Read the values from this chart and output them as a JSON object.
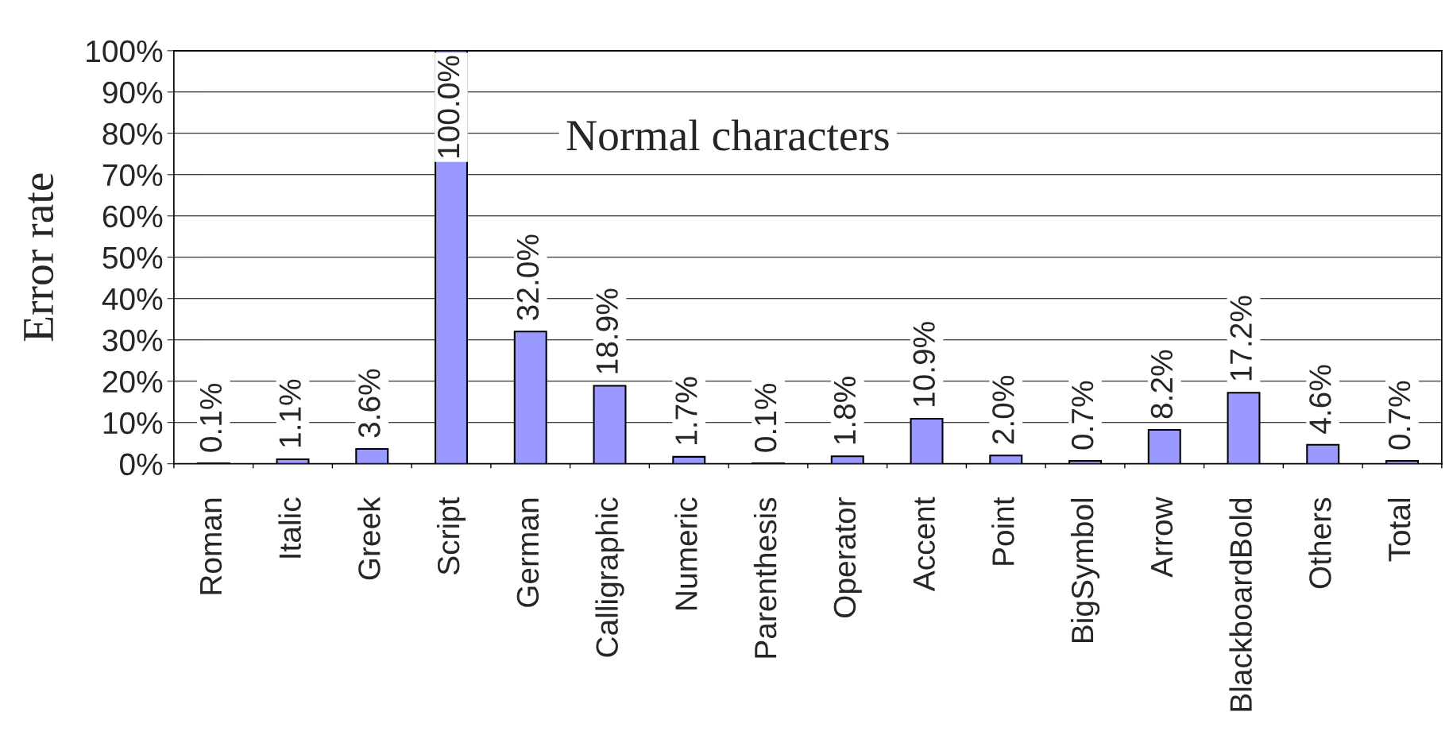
{
  "chart_data": {
    "type": "bar",
    "ylabel": "Error rate",
    "categories": [
      "Roman",
      "Italic",
      "Greek",
      "Script",
      "German",
      "Calligraphic",
      "Numeric",
      "Parenthesis",
      "Operator",
      "Accent",
      "Point",
      "BigSymbol",
      "Arrow",
      "BlackboardBold",
      "Others",
      "Total"
    ],
    "values": [
      0.1,
      1.1,
      3.6,
      100.0,
      32.0,
      18.9,
      1.7,
      0.1,
      1.8,
      10.9,
      2.0,
      0.7,
      8.2,
      17.2,
      4.6,
      0.7
    ],
    "value_labels": [
      "0.1%",
      "1.1%",
      "3.6%",
      "100.0%",
      "32.0%",
      "18.9%",
      "1.7%",
      "0.1%",
      "1.8%",
      "10.9%",
      "2.0%",
      "0.7%",
      "8.2%",
      "17.2%",
      "4.6%",
      "0.7%"
    ],
    "color": "#9999ff",
    "ylim": [
      0,
      100
    ],
    "yticks": [
      {
        "value": 0,
        "label": "0%"
      },
      {
        "value": 10,
        "label": "10%"
      },
      {
        "value": 20,
        "label": "20%"
      },
      {
        "value": 30,
        "label": "30%"
      },
      {
        "value": 40,
        "label": "40%"
      },
      {
        "value": 50,
        "label": "50%"
      },
      {
        "value": 60,
        "label": "60%"
      },
      {
        "value": 70,
        "label": "70%"
      },
      {
        "value": 80,
        "label": "80%"
      },
      {
        "value": 90,
        "label": "90%"
      },
      {
        "value": 100,
        "label": "100%"
      }
    ],
    "grid": "y",
    "annotations": [
      "Normal characters"
    ]
  }
}
